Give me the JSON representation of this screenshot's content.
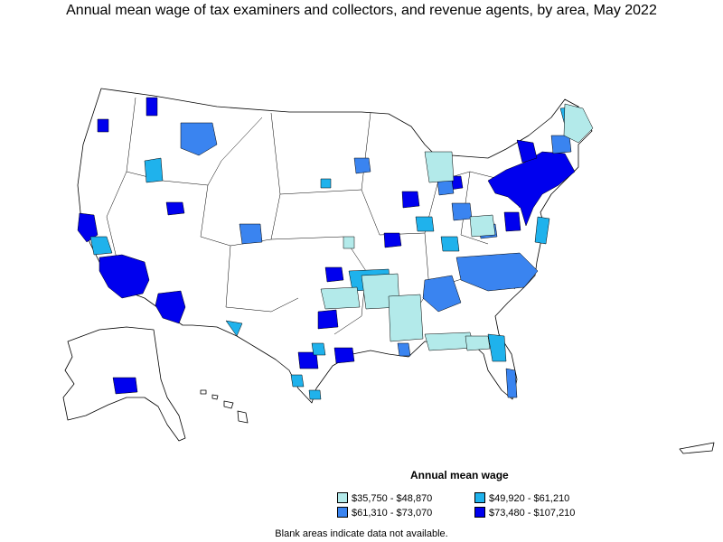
{
  "title": "Annual mean wage of tax examiners and collectors, and revenue agents, by area, May 2022",
  "legend": {
    "title": "Annual mean wage",
    "items": [
      {
        "label": "$35,750 - $48,870",
        "color": "#b3eaea"
      },
      {
        "label": "$49,920 - $61,210",
        "color": "#1fb2ec"
      },
      {
        "label": "$61,310 - $73,070",
        "color": "#3a84f0"
      },
      {
        "label": "$73,480 - $107,210",
        "color": "#0000ee"
      }
    ]
  },
  "note": "Blank areas indicate data not available.",
  "colors": {
    "border": "#000000",
    "blank": "#ffffff"
  }
}
